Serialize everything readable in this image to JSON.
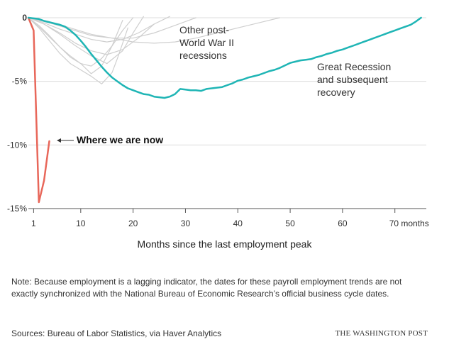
{
  "chart_data": {
    "type": "line",
    "title": "",
    "xlabel": "Months since the last employment peak",
    "ylabel": "",
    "xlim": [
      0,
      76
    ],
    "ylim": [
      -15,
      0
    ],
    "y_ticks": [
      {
        "value": 0,
        "label": "0"
      },
      {
        "value": -5,
        "label": "-5%"
      },
      {
        "value": -10,
        "label": "-10%"
      },
      {
        "value": -15,
        "label": "-15%"
      }
    ],
    "x_ticks": [
      {
        "value": 1,
        "label": "1"
      },
      {
        "value": 10,
        "label": "10"
      },
      {
        "value": 20,
        "label": "20"
      },
      {
        "value": 30,
        "label": "30"
      },
      {
        "value": 40,
        "label": "40"
      },
      {
        "value": 50,
        "label": "50"
      },
      {
        "value": 60,
        "label": "60"
      },
      {
        "value": 70,
        "label": "70 months"
      }
    ],
    "colors": {
      "current": "#e8675a",
      "great_recession": "#1fb5b5",
      "other": "#cfcfcf"
    },
    "series": [
      {
        "id": "current",
        "x": [
          0,
          1,
          2,
          3,
          4
        ],
        "y": [
          0,
          -1.0,
          -14.5,
          -12.8,
          -9.7
        ]
      },
      {
        "id": "great_recession",
        "x": [
          0,
          1,
          2,
          3,
          4,
          5,
          6,
          7,
          8,
          9,
          10,
          11,
          12,
          13,
          14,
          15,
          16,
          17,
          18,
          19,
          20,
          21,
          22,
          23,
          24,
          25,
          26,
          27,
          28,
          29,
          30,
          31,
          32,
          33,
          34,
          35,
          36,
          37,
          38,
          39,
          40,
          41,
          42,
          43,
          44,
          45,
          46,
          47,
          48,
          49,
          50,
          51,
          52,
          53,
          54,
          55,
          56,
          57,
          58,
          59,
          60,
          61,
          62,
          63,
          64,
          65,
          66,
          67,
          68,
          69,
          70,
          71,
          72,
          73,
          74,
          75
        ],
        "y": [
          0,
          -0.05,
          -0.1,
          -0.25,
          -0.35,
          -0.45,
          -0.55,
          -0.7,
          -1.0,
          -1.35,
          -1.8,
          -2.3,
          -2.85,
          -3.35,
          -3.85,
          -4.3,
          -4.7,
          -5.0,
          -5.3,
          -5.55,
          -5.7,
          -5.85,
          -6.0,
          -6.05,
          -6.2,
          -6.25,
          -6.3,
          -6.2,
          -6.0,
          -5.6,
          -5.65,
          -5.7,
          -5.7,
          -5.75,
          -5.6,
          -5.55,
          -5.5,
          -5.45,
          -5.3,
          -5.15,
          -4.95,
          -4.85,
          -4.7,
          -4.6,
          -4.5,
          -4.35,
          -4.2,
          -4.1,
          -3.95,
          -3.75,
          -3.55,
          -3.45,
          -3.35,
          -3.3,
          -3.25,
          -3.1,
          -3.0,
          -2.85,
          -2.75,
          -2.6,
          -2.5,
          -2.35,
          -2.2,
          -2.05,
          -1.9,
          -1.75,
          -1.6,
          -1.45,
          -1.3,
          -1.15,
          -1.0,
          -0.85,
          -0.7,
          -0.55,
          -0.3,
          0
        ]
      },
      {
        "id": "other-1",
        "x": [
          0,
          3,
          6,
          9,
          12,
          15,
          18,
          21,
          24
        ],
        "y": [
          0,
          -0.5,
          -1.2,
          -2.0,
          -2.6,
          -2.9,
          -2.5,
          -1.6,
          -0.5
        ]
      },
      {
        "id": "other-2",
        "x": [
          0,
          2,
          4,
          6,
          8,
          10,
          12,
          14,
          16,
          18,
          20
        ],
        "y": [
          0,
          -0.6,
          -1.4,
          -2.3,
          -3.1,
          -3.6,
          -3.8,
          -3.2,
          -2.2,
          -1.0,
          0
        ]
      },
      {
        "id": "other-3",
        "x": [
          0,
          2,
          4,
          6,
          8,
          10,
          12,
          14,
          16,
          17,
          18,
          19
        ],
        "y": [
          0,
          -0.8,
          -1.8,
          -2.8,
          -3.6,
          -4.1,
          -4.6,
          -5.2,
          -4.3,
          -3.2,
          -2.0,
          -0.8
        ]
      },
      {
        "id": "other-4",
        "x": [
          0,
          3,
          6,
          9,
          12,
          15,
          18,
          20,
          22
        ],
        "y": [
          0,
          -0.5,
          -1.3,
          -2.2,
          -3.0,
          -3.6,
          -2.6,
          -1.2,
          0.1
        ]
      },
      {
        "id": "other-5",
        "x": [
          0,
          4,
          8,
          12,
          16,
          20,
          24,
          28,
          32
        ],
        "y": [
          0,
          -0.4,
          -0.9,
          -1.4,
          -1.6,
          -1.6,
          -1.2,
          -0.6,
          0
        ]
      },
      {
        "id": "other-6",
        "x": [
          0,
          4,
          8,
          12,
          16,
          20,
          24,
          28,
          32,
          36,
          40,
          44,
          48
        ],
        "y": [
          0,
          -0.3,
          -0.8,
          -1.3,
          -1.6,
          -1.9,
          -2.0,
          -1.9,
          -1.6,
          -1.2,
          -0.8,
          -0.4,
          0
        ]
      },
      {
        "id": "other-7",
        "x": [
          0,
          2,
          4,
          6,
          8,
          10,
          12,
          14,
          16,
          18
        ],
        "y": [
          0,
          -0.7,
          -1.5,
          -2.3,
          -3.0,
          -3.6,
          -4.4,
          -3.8,
          -2.2,
          -0.2
        ]
      },
      {
        "id": "other-8",
        "x": [
          0,
          3,
          6,
          9,
          12,
          15,
          18,
          21,
          24,
          27
        ],
        "y": [
          0,
          -0.4,
          -0.9,
          -1.3,
          -1.7,
          -1.9,
          -1.7,
          -1.2,
          -0.5,
          0.1
        ]
      }
    ],
    "annotations": {
      "other": [
        "Other post-",
        "World War II",
        "recessions"
      ],
      "great_recession": [
        "Great Recession",
        "and subsequent",
        "recovery"
      ],
      "current": "Where we are now"
    }
  },
  "note": "Note: Because employment is a lagging indicator, the dates for these payroll employment trends are not exactly synchronized with the National Bureau of Economic Research’s official business cycle dates.",
  "sources": "Sources: Bureau of Labor Statistics, via Haver Analytics",
  "credit": "THE WASHINGTON POST"
}
